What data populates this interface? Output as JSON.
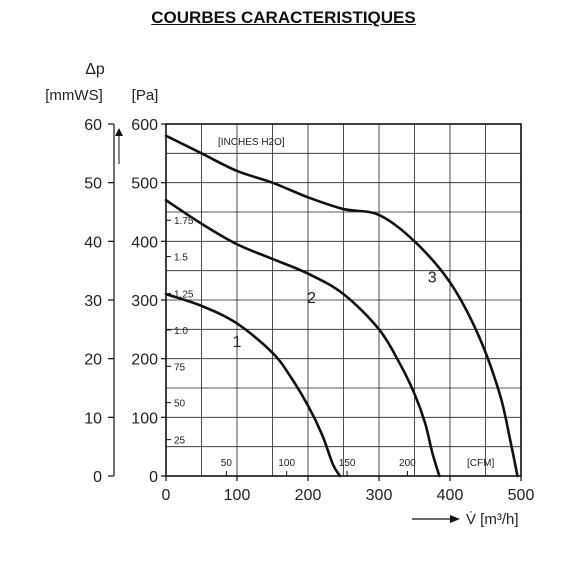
{
  "page": {
    "title": "COURBES CARACTERISTIQUES"
  },
  "chart_data": {
    "type": "line",
    "title": "COURBES CARACTERISTIQUES",
    "ylabel_symbol": "Δp",
    "ylabel_left_unit": "[mmWS]",
    "ylabel_right_unit": "[Pa]",
    "xlabel": "V̇ [m³/h]",
    "inner_y_unit": "[INCHES H2O]",
    "inner_x_unit": "[CFM]",
    "xlim": [
      0,
      500
    ],
    "ylim": [
      0,
      600
    ],
    "grid": true,
    "x_ticks": [
      "0",
      "100",
      "200",
      "300",
      "400",
      "500"
    ],
    "y_ticks_pa": [
      "0",
      "100",
      "200",
      "300",
      "400",
      "500",
      "600"
    ],
    "y_ticks_mmws": [
      "0",
      "10",
      "20",
      "30",
      "40",
      "50",
      "60"
    ],
    "cfm_ticks": [
      {
        "label": "50",
        "m3h": 85
      },
      {
        "label": "100",
        "m3h": 170
      },
      {
        "label": "150",
        "m3h": 255
      },
      {
        "label": "200",
        "m3h": 340
      }
    ],
    "inches_ticks": [
      {
        "label": "25",
        "pa": 62
      },
      {
        "label": "50",
        "pa": 125
      },
      {
        "label": "75",
        "pa": 187
      },
      {
        "label": "1.0",
        "pa": 249
      },
      {
        "label": "1.25",
        "pa": 311
      },
      {
        "label": "1.5",
        "pa": 374
      },
      {
        "label": "1.75",
        "pa": 436
      }
    ],
    "series": [
      {
        "name": "1",
        "x": [
          0,
          50,
          100,
          150,
          175,
          200,
          220,
          235,
          245
        ],
        "y": [
          310,
          290,
          260,
          210,
          170,
          120,
          70,
          20,
          0
        ]
      },
      {
        "name": "2",
        "x": [
          0,
          50,
          100,
          150,
          200,
          250,
          300,
          330,
          350,
          365,
          375,
          385
        ],
        "y": [
          470,
          430,
          395,
          370,
          345,
          310,
          250,
          190,
          140,
          90,
          40,
          0
        ]
      },
      {
        "name": "3",
        "x": [
          0,
          50,
          100,
          150,
          200,
          250,
          300,
          350,
          400,
          440,
          470,
          485,
          495
        ],
        "y": [
          580,
          550,
          520,
          500,
          475,
          455,
          445,
          400,
          330,
          240,
          140,
          60,
          0
        ]
      }
    ]
  }
}
